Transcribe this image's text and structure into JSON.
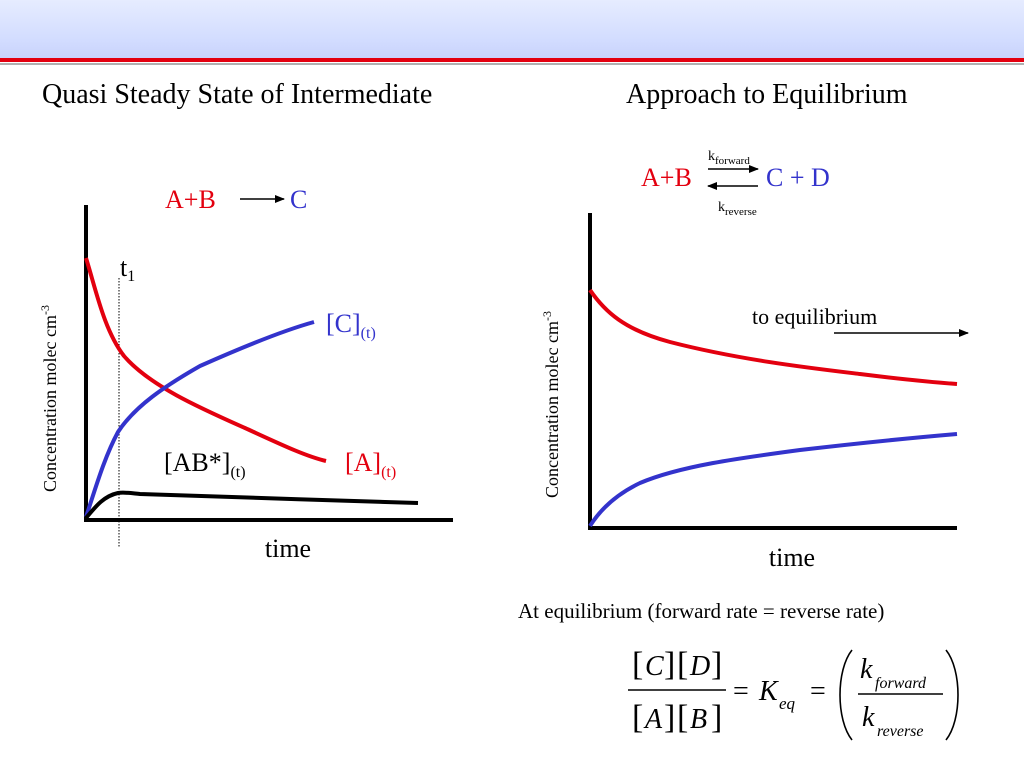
{
  "titles": {
    "left": "Quasi Steady State of Intermediate",
    "right": "Approach to Equilibrium"
  },
  "colors": {
    "red": "#e3000f",
    "blue": "#3333cc",
    "black": "#000000"
  },
  "left_panel": {
    "reaction": {
      "reactants": "A+B",
      "product": "C"
    },
    "y_axis_label": "Concentration molec cm",
    "y_axis_exponent": "-3",
    "x_axis_label": "time",
    "marker": {
      "base": "t",
      "sub": "1"
    },
    "labels": {
      "C": {
        "base": "[C]",
        "sub": "(t)"
      },
      "A": {
        "base": "[A]",
        "sub": "(t)"
      },
      "AB": {
        "base": "[AB*]",
        "sub": "(t)"
      }
    }
  },
  "right_panel": {
    "reaction": {
      "reactants": "A+B",
      "products": "C + D",
      "k_forward": {
        "base": "k",
        "sub": "forward"
      },
      "k_reverse": {
        "base": "k",
        "sub": "reverse"
      }
    },
    "y_axis_label": "Concentration molec cm",
    "y_axis_exponent": "-3",
    "x_axis_label": "time",
    "annotation": "to equilibrium"
  },
  "caption": "At equilibrium (forward rate = reverse rate)",
  "equation": {
    "num": [
      "C",
      "D"
    ],
    "den": [
      "A",
      "B"
    ],
    "eq_sign": "=",
    "K": "K",
    "K_sub": "eq",
    "k": "k",
    "k_forward_sub": "forward",
    "k_reverse_sub": "reverse"
  }
}
